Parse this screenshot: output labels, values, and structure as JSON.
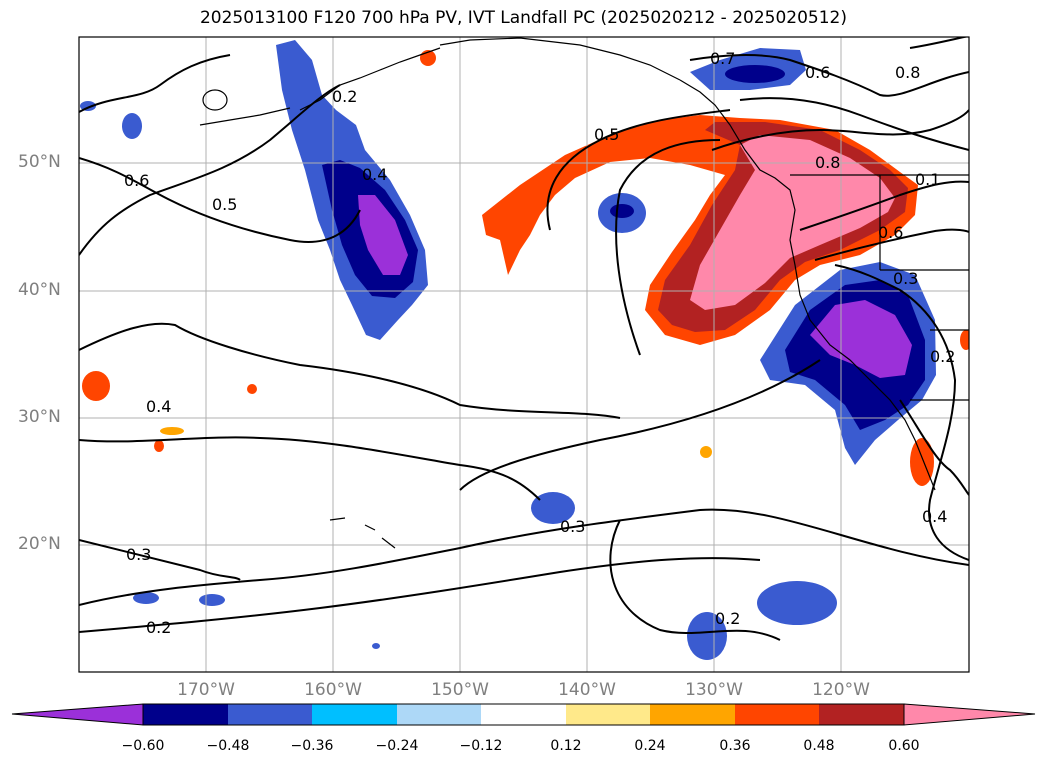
{
  "title": "2025013100 F120 700 hPa PV, IVT Landfall PC (2025020212 - 2025020512)",
  "map": {
    "lat_ticks": [
      "50°N",
      "40°N",
      "30°N",
      "20°N"
    ],
    "lon_ticks": [
      "170°W",
      "160°W",
      "150°W",
      "140°W",
      "130°W",
      "120°W"
    ],
    "contour_labels": [
      "0.7",
      "0.6",
      "0.8",
      "0.5",
      "0.8",
      "0.6",
      "0.4",
      "0.5",
      "0.6",
      "0.1",
      "0.4",
      "0.3",
      "0.2",
      "0.3",
      "0.3",
      "0.2",
      "0.2",
      "0.4",
      "0.2"
    ]
  },
  "colorbar": {
    "ticks": [
      "−0.60",
      "−0.48",
      "−0.36",
      "−0.24",
      "−0.12",
      "0.12",
      "0.24",
      "0.36",
      "0.48",
      "0.60"
    ],
    "colors": [
      "#9b30d9",
      "#00008b",
      "#3a5bd0",
      "#00bfff",
      "#add8f7",
      "#ffffff",
      "#ffe98a",
      "#ffa500",
      "#ff4500",
      "#b22222",
      "#ff88aa"
    ]
  }
}
